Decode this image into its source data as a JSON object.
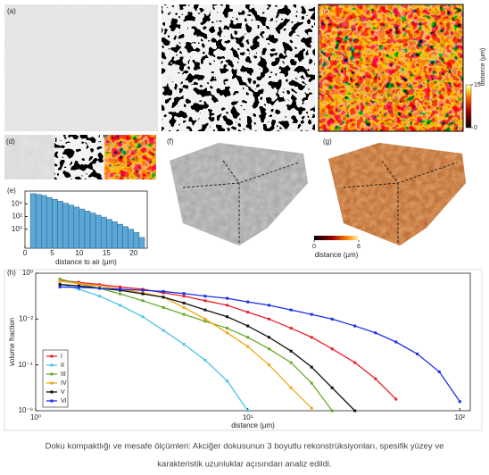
{
  "panel_labels": [
    "(a)",
    "(b)",
    "(c)",
    "(d)",
    "(f)",
    "(g)"
  ],
  "colorbar_c": {
    "label": "distance (μm)",
    "lim": [
      0,
      15
    ],
    "ticks": [
      0,
      15
    ]
  },
  "colorbar_g": {
    "label": "distance (μm)",
    "lim": [
      0,
      6
    ],
    "ticks": [
      0,
      6
    ]
  },
  "caption": [
    "Doku kompaktlığı ve mesafe ölçümleri: Akciğer dokusunun 3 boyutlu rekonstrüksiyonları, spesifik yüzey ve",
    "karakteristik uzunluklar açısından analiz edildi."
  ],
  "chart_data": [
    {
      "type": "histogram",
      "panel_label": "(e)",
      "xlabel": "distance to air (μm)",
      "bins": [
        1,
        2,
        3,
        4,
        5,
        6,
        7,
        8,
        9,
        10,
        11,
        12,
        13,
        14,
        15,
        16,
        17,
        18,
        19,
        20,
        21,
        22
      ],
      "values": [
        400000,
        300000,
        200000,
        100000,
        50000,
        25000,
        12000,
        6000,
        3000,
        1500,
        700,
        350,
        160,
        80,
        35,
        15,
        6,
        2.5,
        1,
        0.3,
        0.05
      ],
      "color": "#5ba7d6",
      "xlim": [
        0,
        22.5
      ],
      "xticks": [
        0,
        5,
        10,
        15,
        20
      ],
      "ylim": [
        0.001,
        1000000
      ],
      "ylog": true,
      "yticks": [
        {
          "value": 1,
          "label": "10⁰"
        },
        {
          "value": 100,
          "label": "10²"
        },
        {
          "value": 10000,
          "label": "10⁴"
        }
      ]
    },
    {
      "type": "line",
      "panel_label": "(h)",
      "xlabel": "distance (μm)",
      "ylabel": "volume fraction",
      "xlog": true,
      "ylog": true,
      "xlim": [
        1,
        112
      ],
      "ylim": [
        1e-06,
        1
      ],
      "xticks": [
        {
          "value": 1,
          "label": "10⁰"
        },
        {
          "value": 10,
          "label": "10¹"
        },
        {
          "value": 100,
          "label": "10²"
        }
      ],
      "yticks": [
        {
          "value": 1,
          "label": "10⁰"
        },
        {
          "value": 0.01,
          "label": "10⁻²"
        },
        {
          "value": 0.0001,
          "label": "10⁻⁴"
        },
        {
          "value": 1e-06,
          "label": "10⁻⁶"
        }
      ],
      "x": [
        1.3,
        1.6,
        2,
        2.5,
        3.2,
        4,
        5,
        6.3,
        8,
        10,
        12.6,
        16,
        20,
        25,
        32,
        40,
        50,
        63,
        80,
        100
      ],
      "series": [
        {
          "name": "I",
          "color": "#e8202a",
          "values": [
            0.5,
            0.4,
            0.32,
            0.25,
            0.2,
            0.14,
            0.1,
            0.063,
            0.04,
            0.02,
            0.01,
            0.004,
            0.0016,
            0.0005,
            0.000126,
            2.5e-05,
            3.2e-06,
            null,
            null,
            null
          ]
        },
        {
          "name": "II",
          "color": "#4fc3e8",
          "values": [
            0.35,
            0.2,
            0.1,
            0.04,
            0.0126,
            0.0032,
            0.0008,
            0.00016,
            2e-05,
            1e-06,
            null,
            null,
            null,
            null,
            null,
            null,
            null,
            null,
            null,
            null
          ]
        },
        {
          "name": "III",
          "color": "#6aaa2a",
          "values": [
            0.56,
            0.35,
            0.22,
            0.126,
            0.063,
            0.032,
            0.016,
            0.008,
            0.004,
            0.0016,
            0.0005,
            0.000126,
            1.6e-05,
            1e-06,
            null,
            null,
            null,
            null,
            null,
            null
          ]
        },
        {
          "name": "IV",
          "color": "#f0a818",
          "values": [
            0.45,
            0.35,
            0.28,
            0.2,
            0.14,
            0.09,
            0.032,
            0.01,
            0.0025,
            0.00063,
            0.0001,
            1e-05,
            1.3e-06,
            null,
            null,
            null,
            null,
            null,
            null,
            null
          ]
        },
        {
          "name": "V",
          "color": "#111111",
          "values": [
            0.32,
            0.28,
            0.22,
            0.18,
            0.126,
            0.09,
            0.05,
            0.025,
            0.0126,
            0.005,
            0.0016,
            0.0004,
            8e-05,
            1e-05,
            1e-06,
            null,
            null,
            null,
            null,
            null
          ]
        },
        {
          "name": "VI",
          "color": "#1a2ee8",
          "values": [
            0.25,
            0.24,
            0.22,
            0.2,
            0.18,
            0.16,
            0.13,
            0.1,
            0.08,
            0.056,
            0.04,
            0.025,
            0.016,
            0.01,
            0.005,
            0.0025,
            0.001,
            0.0003,
            5e-05,
            2.5e-06
          ]
        }
      ]
    }
  ]
}
